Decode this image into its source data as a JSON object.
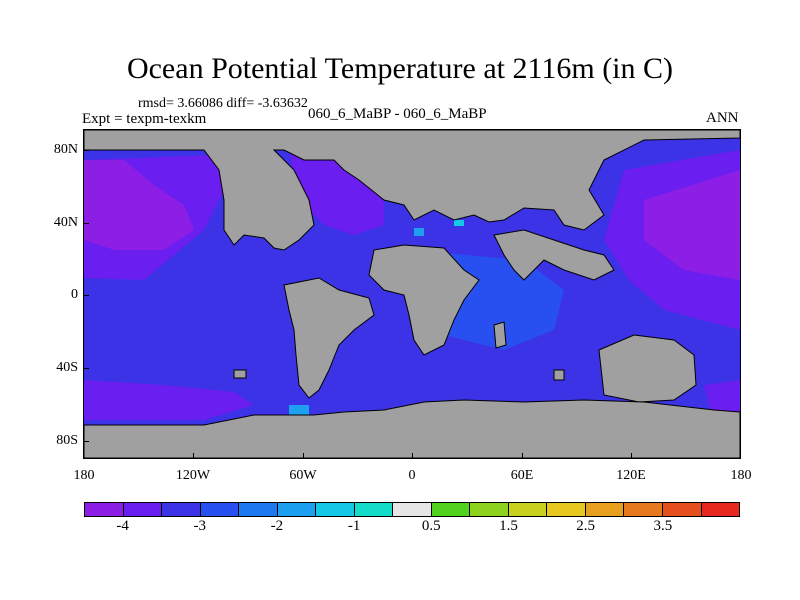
{
  "title": "Ocean Potential Temperature at 2116m (in C)",
  "stats_line": "rmsd= 3.66086 diff= -3.63632",
  "expt_label": "Expt = texpm-texkm",
  "case_label": "060_6_MaBP - 060_6_MaBP",
  "season_label": "ANN",
  "map": {
    "land_color": "#a0a0a0",
    "lat_labels": [
      "80N",
      "40N",
      "0",
      "40S",
      "80S"
    ],
    "lon_labels": [
      "180",
      "120W",
      "60W",
      "0",
      "60E",
      "120E",
      "180"
    ]
  },
  "colorbar": {
    "colors": [
      "#8c1ee6",
      "#6a1ef0",
      "#3c32e6",
      "#2850f0",
      "#1e78f0",
      "#1ea0f0",
      "#14c8e6",
      "#14dcc8",
      "#e6e6e6",
      "#50d21e",
      "#8cd21e",
      "#c8d21e",
      "#e6c81e",
      "#e6a01e",
      "#e6781e",
      "#e6501e",
      "#e6281e"
    ],
    "labels": [
      "-4",
      "-3",
      "-2",
      "-1",
      "0.5",
      "1.5",
      "2.5",
      "3.5"
    ]
  }
}
